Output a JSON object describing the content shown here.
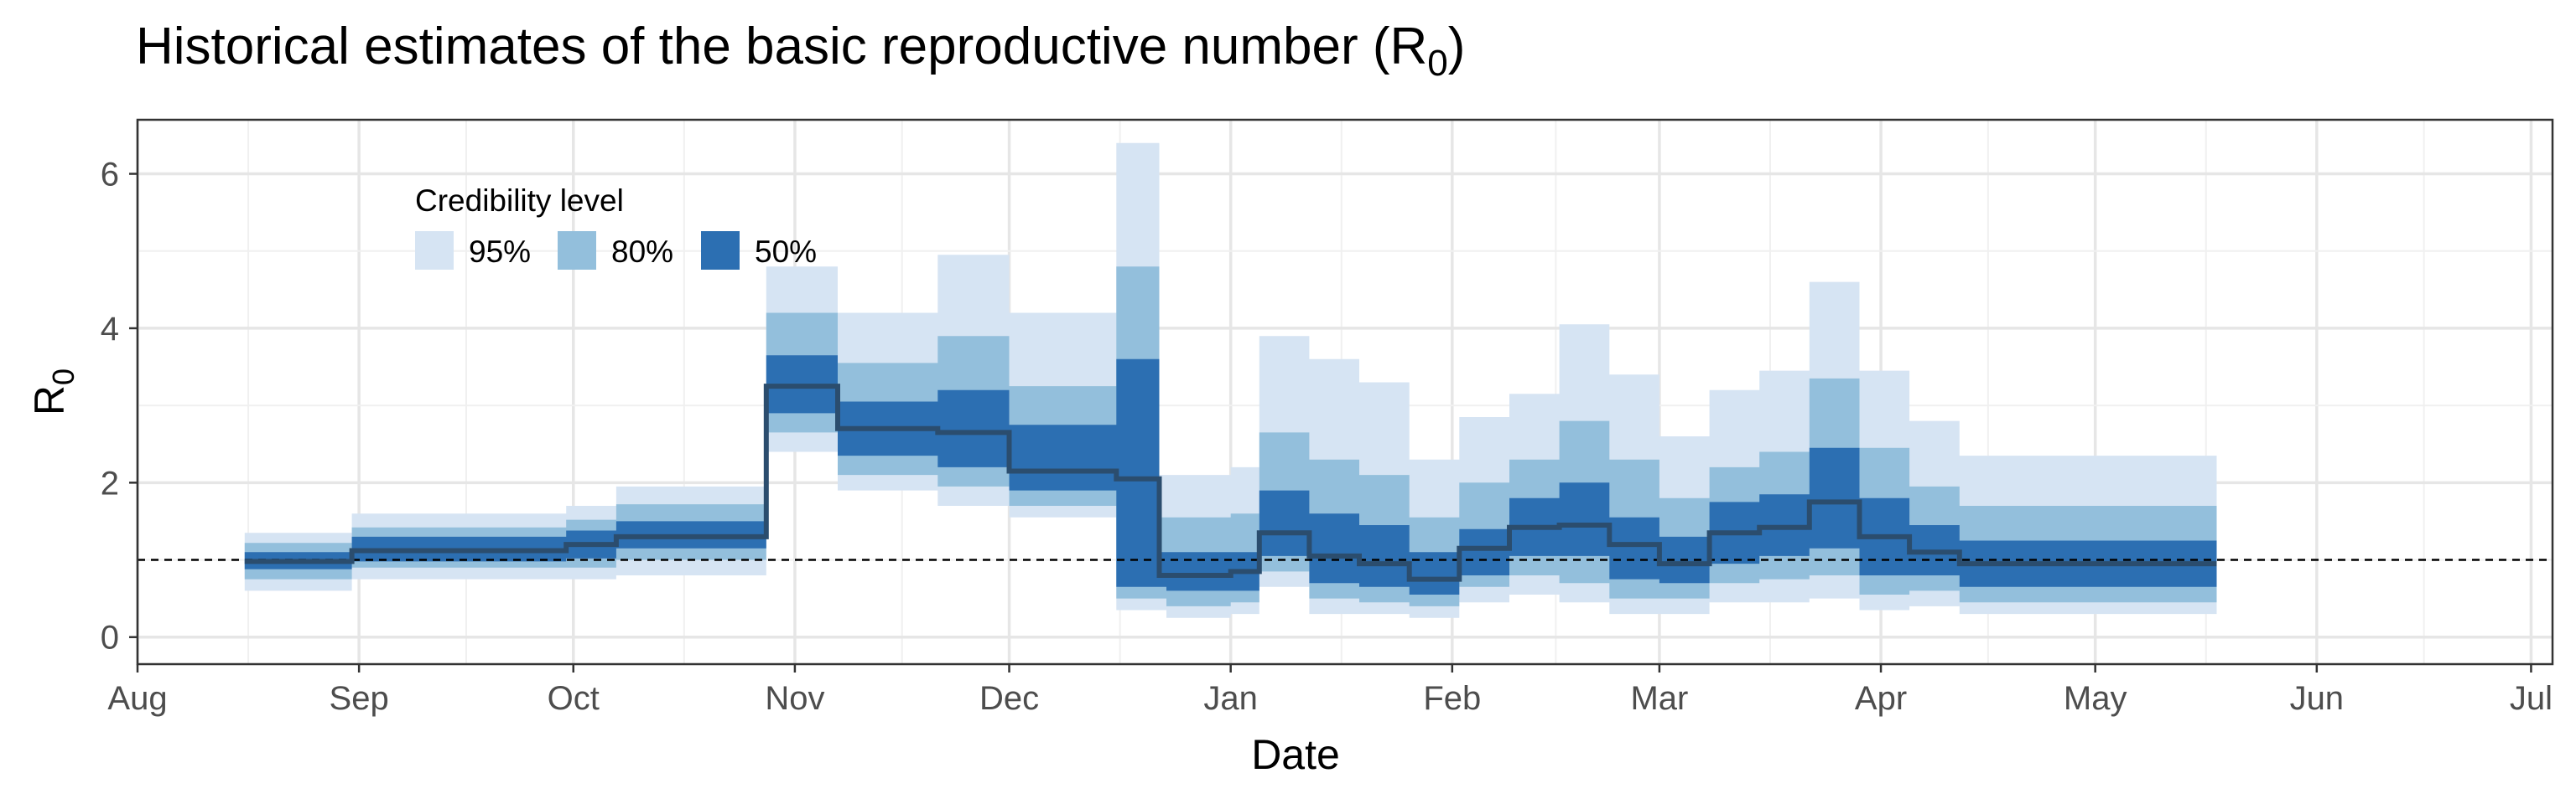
{
  "chart_data": {
    "type": "area",
    "title": "Historical estimates of the basic reproductive number (R",
    "title_subscript": "0",
    "title_suffix": ")",
    "xlabel": "Date",
    "ylabel": "R",
    "ylabel_subscript": "0",
    "x_ticks": [
      "Aug",
      "Sep",
      "Oct",
      "Nov",
      "Dec",
      "Jan",
      "Feb",
      "Mar",
      "Apr",
      "May",
      "Jun",
      "Jul"
    ],
    "y_ticks": [
      "0",
      "2",
      "4",
      "6"
    ],
    "ylim": [
      -0.35,
      6.7
    ],
    "xlim": [
      "2019-08-01",
      "2020-07-04"
    ],
    "grid": true,
    "reference_line": 1,
    "legend": {
      "title": "Credibility level",
      "placement": "top-left",
      "items": [
        {
          "label": "95%",
          "color": "#d6e4f3"
        },
        {
          "label": "80%",
          "color": "#93bfdc"
        },
        {
          "label": "50%",
          "color": "#2c6fb2"
        }
      ]
    },
    "median_color": "#2b4d6e",
    "x": [
      "2019-08-16",
      "2019-08-31",
      "2019-09-30",
      "2019-10-07",
      "2019-10-26",
      "2019-10-28",
      "2019-11-07",
      "2019-11-21",
      "2019-12-01",
      "2019-12-16",
      "2019-12-22",
      "2019-12-23",
      "2020-01-01",
      "2020-01-05",
      "2020-01-12",
      "2020-01-19",
      "2020-01-26",
      "2020-02-02",
      "2020-02-09",
      "2020-02-16",
      "2020-02-23",
      "2020-03-01",
      "2020-03-08",
      "2020-03-15",
      "2020-03-22",
      "2020-03-29",
      "2020-04-05",
      "2020-04-12",
      "2020-04-19",
      "2020-05-18"
    ],
    "series": [
      {
        "name": "95%",
        "lower": [
          0.6,
          0.75,
          0.75,
          0.8,
          0.8,
          2.4,
          1.9,
          1.7,
          1.55,
          0.35,
          0.35,
          0.25,
          0.3,
          0.65,
          0.3,
          0.3,
          0.25,
          0.45,
          0.55,
          0.45,
          0.3,
          0.3,
          0.45,
          0.45,
          0.5,
          0.35,
          0.4,
          0.3,
          0.3,
          0.3
        ],
        "upper": [
          1.35,
          1.6,
          1.7,
          1.95,
          1.95,
          4.8,
          4.2,
          4.95,
          4.2,
          6.4,
          2.1,
          2.1,
          2.2,
          3.9,
          3.6,
          3.3,
          2.3,
          2.85,
          3.15,
          4.05,
          3.4,
          2.6,
          3.2,
          3.45,
          4.6,
          3.45,
          2.8,
          2.35,
          2.35,
          2.35
        ]
      },
      {
        "name": "80%",
        "lower": [
          0.75,
          0.9,
          0.9,
          1.0,
          1.0,
          2.65,
          2.1,
          1.95,
          1.7,
          0.5,
          0.5,
          0.4,
          0.45,
          0.85,
          0.5,
          0.45,
          0.4,
          0.65,
          0.8,
          0.7,
          0.5,
          0.5,
          0.7,
          0.75,
          0.8,
          0.55,
          0.6,
          0.45,
          0.45,
          0.45
        ],
        "upper": [
          1.22,
          1.42,
          1.52,
          1.72,
          1.72,
          4.2,
          3.55,
          3.9,
          3.25,
          4.8,
          1.55,
          1.55,
          1.6,
          2.65,
          2.3,
          2.1,
          1.55,
          2.0,
          2.3,
          2.8,
          2.3,
          1.8,
          2.2,
          2.4,
          3.35,
          2.45,
          1.95,
          1.7,
          1.7,
          1.7
        ]
      },
      {
        "name": "50%",
        "lower": [
          0.88,
          0.98,
          1.02,
          1.15,
          1.15,
          2.9,
          2.35,
          2.2,
          1.9,
          0.65,
          0.65,
          0.6,
          0.6,
          1.05,
          0.7,
          0.65,
          0.55,
          0.8,
          1.05,
          1.05,
          0.75,
          0.7,
          0.95,
          1.05,
          1.15,
          0.8,
          0.8,
          0.65,
          0.65,
          0.65
        ],
        "upper": [
          1.1,
          1.3,
          1.38,
          1.5,
          1.5,
          3.65,
          3.05,
          3.2,
          2.75,
          3.6,
          1.1,
          1.1,
          1.1,
          1.9,
          1.6,
          1.45,
          1.1,
          1.4,
          1.8,
          2.0,
          1.55,
          1.3,
          1.75,
          1.85,
          2.45,
          1.8,
          1.45,
          1.25,
          1.25,
          1.25
        ]
      },
      {
        "name": "median",
        "values": [
          0.98,
          1.12,
          1.2,
          1.3,
          1.3,
          3.25,
          2.7,
          2.65,
          2.15,
          2.05,
          0.8,
          0.8,
          0.85,
          1.35,
          1.05,
          0.95,
          0.75,
          1.15,
          1.42,
          1.45,
          1.2,
          0.95,
          1.35,
          1.42,
          1.75,
          1.3,
          1.1,
          0.95,
          0.95,
          0.95
        ]
      }
    ]
  }
}
